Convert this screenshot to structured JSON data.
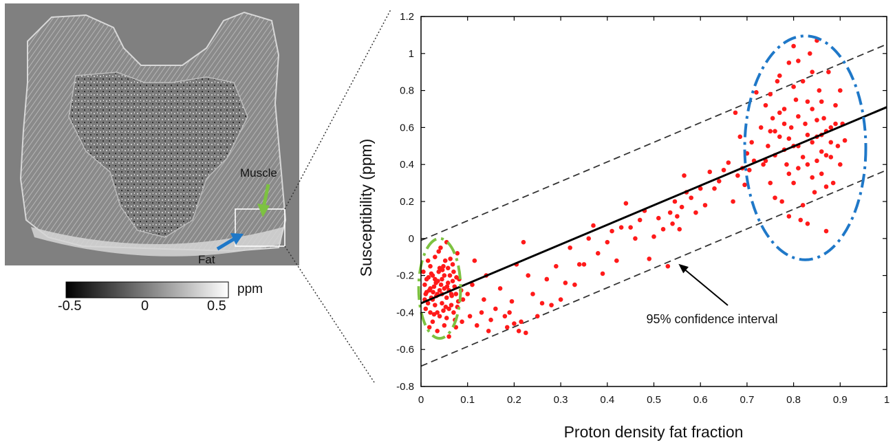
{
  "left_panel": {
    "image_labels": {
      "muscle": "Muscle",
      "fat": "Fat"
    },
    "colorbar": {
      "unit": "ppm",
      "ticks": [
        "-0.5",
        "0",
        "0.5"
      ],
      "range": [
        -0.5,
        0.5
      ]
    },
    "colors": {
      "muscle_arrow": "#7dc241",
      "fat_arrow": "#1f78c8",
      "background": "#808080"
    }
  },
  "chart_data": {
    "type": "scatter",
    "xlabel": "Proton density fat fraction",
    "ylabel": "Susceptibility (ppm)",
    "xlim": [
      0,
      1
    ],
    "ylim": [
      -0.8,
      1.2
    ],
    "x_ticks": [
      "0",
      "0.1",
      "0.2",
      "0.3",
      "0.4",
      "0.5",
      "0.6",
      "0.7",
      "0.8",
      "0.9",
      "1"
    ],
    "y_ticks": [
      "-0.8",
      "-0.6",
      "-0.4",
      "-0.2",
      "0",
      "0.2",
      "0.4",
      "0.6",
      "0.8",
      "1",
      "1.2"
    ],
    "grid": false,
    "regression_line": {
      "intercept": -0.35,
      "slope": 1.06,
      "color": "#000000"
    },
    "confidence_bands": {
      "offset": 0.34,
      "style": "dashed",
      "color": "#333333"
    },
    "annotation": {
      "text": "95% confidence interval",
      "x": 0.55,
      "y": -0.13
    },
    "clusters": [
      {
        "shape": "ellipse",
        "style": "dash-dot",
        "color": "#7dc241",
        "center": [
          0.04,
          -0.27
        ],
        "radius": [
          0.045,
          0.27
        ]
      },
      {
        "shape": "ellipse",
        "style": "dash-dot",
        "color": "#1f78c8",
        "center": [
          0.825,
          0.49
        ],
        "radius": [
          0.13,
          0.605
        ]
      }
    ],
    "series": [
      {
        "color": "#ff1a1a",
        "points": [
          [
            0.005,
            -0.18
          ],
          [
            0.008,
            -0.25
          ],
          [
            0.01,
            -0.3
          ],
          [
            0.012,
            -0.22
          ],
          [
            0.015,
            -0.35
          ],
          [
            0.018,
            -0.28
          ],
          [
            0.02,
            -0.15
          ],
          [
            0.02,
            -0.4
          ],
          [
            0.022,
            -0.32
          ],
          [
            0.025,
            -0.2
          ],
          [
            0.025,
            -0.45
          ],
          [
            0.028,
            -0.26
          ],
          [
            0.03,
            -0.1
          ],
          [
            0.03,
            -0.36
          ],
          [
            0.032,
            -0.24
          ],
          [
            0.035,
            -0.3
          ],
          [
            0.035,
            -0.5
          ],
          [
            0.038,
            -0.18
          ],
          [
            0.04,
            -0.28
          ],
          [
            0.04,
            -0.42
          ],
          [
            0.042,
            -0.05
          ],
          [
            0.045,
            -0.22
          ],
          [
            0.045,
            -0.35
          ],
          [
            0.048,
            -0.15
          ],
          [
            0.05,
            -0.27
          ],
          [
            0.05,
            -0.47
          ],
          [
            0.052,
            -0.12
          ],
          [
            0.055,
            -0.32
          ],
          [
            0.055,
            -0.02
          ],
          [
            0.058,
            -0.24
          ],
          [
            0.06,
            -0.38
          ],
          [
            0.06,
            -0.53
          ],
          [
            0.062,
            -0.2
          ],
          [
            0.065,
            -0.3
          ],
          [
            0.068,
            -0.14
          ],
          [
            0.07,
            -0.4
          ],
          [
            0.072,
            -0.26
          ],
          [
            0.075,
            -0.48
          ],
          [
            0.078,
            -0.08
          ],
          [
            0.08,
            -0.34
          ],
          [
            0.082,
            -0.22
          ],
          [
            0.01,
            -0.38
          ],
          [
            0.015,
            -0.12
          ],
          [
            0.02,
            -0.27
          ],
          [
            0.025,
            -0.33
          ],
          [
            0.03,
            -0.22
          ],
          [
            0.035,
            -0.4
          ],
          [
            0.04,
            -0.16
          ],
          [
            0.045,
            -0.3
          ],
          [
            0.05,
            -0.2
          ],
          [
            0.055,
            -0.43
          ],
          [
            0.06,
            -0.28
          ],
          [
            0.065,
            -0.36
          ],
          [
            0.07,
            -0.18
          ],
          [
            0.075,
            -0.3
          ],
          [
            0.012,
            -0.29
          ],
          [
            0.022,
            -0.19
          ],
          [
            0.033,
            -0.31
          ],
          [
            0.043,
            -0.25
          ],
          [
            0.053,
            -0.37
          ],
          [
            0.063,
            -0.11
          ],
          [
            0.073,
            -0.44
          ],
          [
            0.018,
            -0.48
          ],
          [
            0.028,
            -0.41
          ],
          [
            0.038,
            -0.07
          ],
          [
            0.048,
            -0.39
          ],
          [
            0.058,
            -0.16
          ],
          [
            0.068,
            -0.23
          ],
          [
            0.078,
            -0.37
          ],
          [
            0.008,
            -0.33
          ],
          [
            0.016,
            -0.21
          ],
          [
            0.026,
            -0.29
          ],
          [
            0.036,
            -0.23
          ],
          [
            0.046,
            -0.17
          ],
          [
            0.056,
            -0.26
          ],
          [
            0.066,
            -0.31
          ],
          [
            0.076,
            -0.21
          ],
          [
            0.086,
            -0.28
          ],
          [
            0.088,
            -0.45
          ],
          [
            0.09,
            -0.33
          ],
          [
            0.1,
            -0.3
          ],
          [
            0.105,
            -0.42
          ],
          [
            0.11,
            -0.25
          ],
          [
            0.115,
            -0.12
          ],
          [
            0.12,
            -0.47
          ],
          [
            0.13,
            -0.4
          ],
          [
            0.135,
            -0.33
          ],
          [
            0.14,
            -0.2
          ],
          [
            0.145,
            -0.5
          ],
          [
            0.15,
            -0.44
          ],
          [
            0.16,
            -0.38
          ],
          [
            0.17,
            -0.27
          ],
          [
            0.18,
            -0.42
          ],
          [
            0.185,
            -0.48
          ],
          [
            0.19,
            -0.4
          ],
          [
            0.195,
            -0.34
          ],
          [
            0.2,
            -0.46
          ],
          [
            0.205,
            -0.14
          ],
          [
            0.21,
            -0.5
          ],
          [
            0.215,
            -0.45
          ],
          [
            0.22,
            -0.02
          ],
          [
            0.225,
            -0.51
          ],
          [
            0.23,
            -0.2
          ],
          [
            0.24,
            -0.3
          ],
          [
            0.25,
            -0.42
          ],
          [
            0.26,
            -0.35
          ],
          [
            0.27,
            -0.22
          ],
          [
            0.28,
            -0.36
          ],
          [
            0.29,
            -0.15
          ],
          [
            0.3,
            -0.33
          ],
          [
            0.31,
            -0.24
          ],
          [
            0.32,
            -0.05
          ],
          [
            0.33,
            -0.25
          ],
          [
            0.34,
            -0.14
          ],
          [
            0.35,
            -0.14
          ],
          [
            0.36,
            0.0
          ],
          [
            0.37,
            0.07
          ],
          [
            0.38,
            -0.08
          ],
          [
            0.39,
            -0.19
          ],
          [
            0.4,
            -0.02
          ],
          [
            0.41,
            0.04
          ],
          [
            0.42,
            -0.12
          ],
          [
            0.43,
            0.06
          ],
          [
            0.44,
            0.19
          ],
          [
            0.45,
            0.06
          ],
          [
            0.46,
            0.0
          ],
          [
            0.47,
            0.1
          ],
          [
            0.48,
            0.15
          ],
          [
            0.49,
            -0.11
          ],
          [
            0.5,
            0.01
          ],
          [
            0.51,
            0.11
          ],
          [
            0.52,
            0.05
          ],
          [
            0.53,
            -0.15
          ],
          [
            0.535,
            0.14
          ],
          [
            0.54,
            0.08
          ],
          [
            0.545,
            0.2
          ],
          [
            0.55,
            0.12
          ],
          [
            0.555,
            0.05
          ],
          [
            0.56,
            0.17
          ],
          [
            0.565,
            0.34
          ],
          [
            0.57,
            0.25
          ],
          [
            0.58,
            0.22
          ],
          [
            0.59,
            0.14
          ],
          [
            0.6,
            0.27
          ],
          [
            0.61,
            0.18
          ],
          [
            0.62,
            0.36
          ],
          [
            0.63,
            0.27
          ],
          [
            0.64,
            0.31
          ],
          [
            0.65,
            0.37
          ],
          [
            0.66,
            0.41
          ],
          [
            0.67,
            0.2
          ],
          [
            0.675,
            0.68
          ],
          [
            0.68,
            0.34
          ],
          [
            0.685,
            0.55
          ],
          [
            0.69,
            0.38
          ],
          [
            0.695,
            0.29
          ],
          [
            0.7,
            0.46
          ],
          [
            0.705,
            0.37
          ],
          [
            0.71,
            0.52
          ],
          [
            0.715,
            0.42
          ],
          [
            0.72,
            0.79
          ],
          [
            0.73,
            0.6
          ],
          [
            0.735,
            0.4
          ],
          [
            0.74,
            0.72
          ],
          [
            0.745,
            0.5
          ],
          [
            0.75,
            0.3
          ],
          [
            0.755,
            0.65
          ],
          [
            0.76,
            0.45
          ],
          [
            0.765,
            0.85
          ],
          [
            0.77,
            0.55
          ],
          [
            0.775,
            0.2
          ],
          [
            0.78,
            0.7
          ],
          [
            0.785,
            0.4
          ],
          [
            0.79,
            0.95
          ],
          [
            0.795,
            0.6
          ],
          [
            0.8,
            0.3
          ],
          [
            0.805,
            0.75
          ],
          [
            0.81,
            0.5
          ],
          [
            0.815,
            0.1
          ],
          [
            0.82,
            0.85
          ],
          [
            0.825,
            0.62
          ],
          [
            0.83,
            0.4
          ],
          [
            0.835,
            1.0
          ],
          [
            0.84,
            0.7
          ],
          [
            0.845,
            0.25
          ],
          [
            0.85,
            0.55
          ],
          [
            0.855,
            0.8
          ],
          [
            0.86,
            0.35
          ],
          [
            0.865,
            0.65
          ],
          [
            0.87,
            0.45
          ],
          [
            0.875,
            0.9
          ],
          [
            0.88,
            0.6
          ],
          [
            0.885,
            0.3
          ],
          [
            0.89,
            0.72
          ],
          [
            0.895,
            0.5
          ],
          [
            0.9,
            0.4
          ],
          [
            0.905,
            0.62
          ],
          [
            0.91,
            0.53
          ],
          [
            0.74,
            0.42
          ],
          [
            0.75,
            0.58
          ],
          [
            0.76,
            0.22
          ],
          [
            0.77,
            0.68
          ],
          [
            0.78,
            0.48
          ],
          [
            0.79,
            0.35
          ],
          [
            0.8,
            0.82
          ],
          [
            0.81,
            0.66
          ],
          [
            0.82,
            0.18
          ],
          [
            0.83,
            0.56
          ],
          [
            0.84,
            0.9
          ],
          [
            0.85,
            0.42
          ],
          [
            0.86,
            0.74
          ],
          [
            0.87,
            0.28
          ],
          [
            0.88,
            0.52
          ],
          [
            0.89,
            0.62
          ],
          [
            0.9,
            0.8
          ],
          [
            0.76,
            0.58
          ],
          [
            0.78,
            0.62
          ],
          [
            0.8,
            0.5
          ],
          [
            0.82,
            0.44
          ],
          [
            0.84,
            0.52
          ],
          [
            0.86,
            0.56
          ],
          [
            0.88,
            0.44
          ],
          [
            0.8,
            1.04
          ],
          [
            0.83,
            0.08
          ],
          [
            0.85,
            1.07
          ],
          [
            0.79,
            0.12
          ],
          [
            0.87,
            0.04
          ],
          [
            0.77,
            0.88
          ],
          [
            0.81,
            0.96
          ],
          [
            0.83,
            0.74
          ],
          [
            0.85,
            0.64
          ],
          [
            0.87,
            0.58
          ],
          [
            0.75,
            0.78
          ],
          [
            0.79,
            0.54
          ],
          [
            0.81,
            0.38
          ],
          [
            0.84,
            0.33
          ],
          [
            0.86,
            0.47
          ]
        ]
      }
    ]
  }
}
